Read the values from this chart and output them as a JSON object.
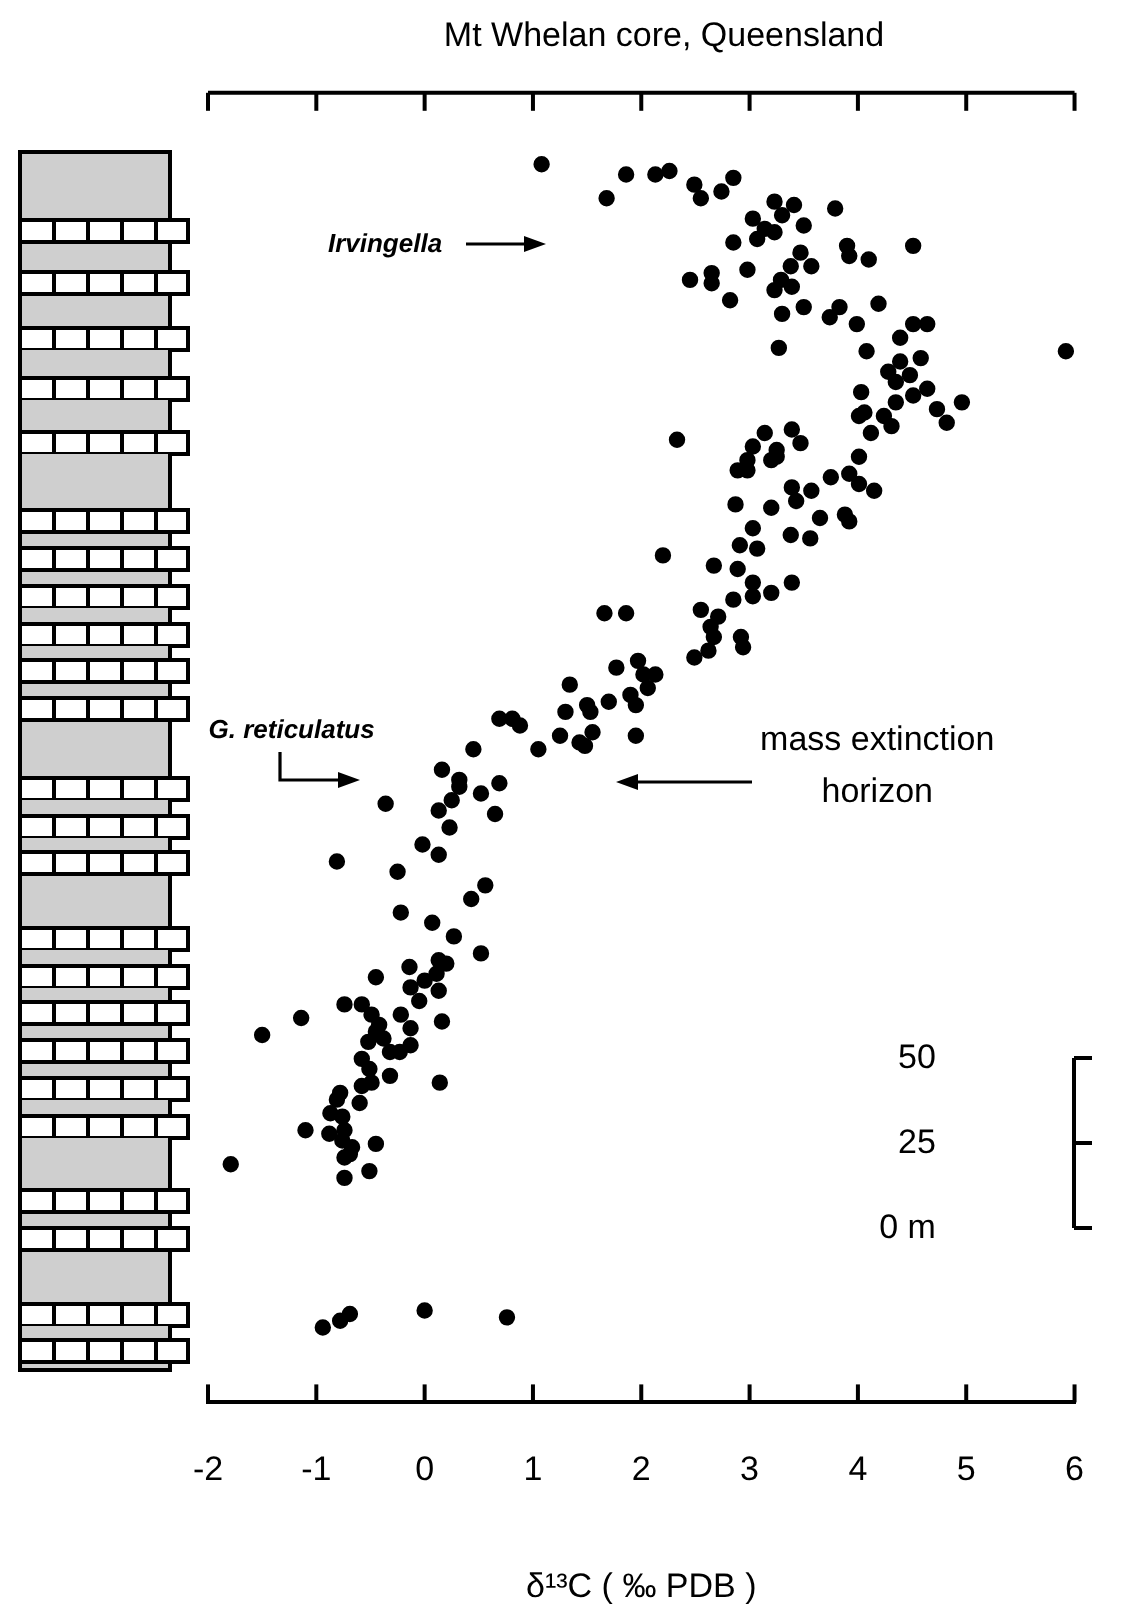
{
  "chart_data": {
    "type": "scatter",
    "title": "Mt Whelan core, Queensland",
    "xlabel": "δ¹³C ( ‰ PDB )",
    "x": [
      1.08,
      1.68,
      1.86,
      2.13,
      2.26,
      2.49,
      2.55,
      2.74,
      2.85,
      3.03,
      3.07,
      3.14,
      3.23,
      3.23,
      3.3,
      3.41,
      3.5,
      3.79,
      2.85,
      3.47,
      3.38,
      3.57,
      3.9,
      3.92,
      4.1,
      4.51,
      2.45,
      2.65,
      2.65,
      2.98,
      3.29,
      3.23,
      3.39,
      2.82,
      3.3,
      3.5,
      3.74,
      3.83,
      3.99,
      4.19,
      4.51,
      4.64,
      4.39,
      3.27,
      4.08,
      5.92,
      4.39,
      4.28,
      4.58,
      4.48,
      4.35,
      4.03,
      4.51,
      4.64,
      4.35,
      4.96,
      4.73,
      4.82,
      4.01,
      4.06,
      4.24,
      4.31,
      4.12,
      2.33,
      3.14,
      3.39,
      3.47,
      3.03,
      3.25,
      2.98,
      3.2,
      4.01,
      3.25,
      2.89,
      2.98,
      3.75,
      3.92,
      4.01,
      4.15,
      3.39,
      3.57,
      3.43,
      2.87,
      3.2,
      3.65,
      3.88,
      3.92,
      3.38,
      3.56,
      3.03,
      2.91,
      3.07,
      2.2,
      2.67,
      2.89,
      3.03,
      3.03,
      3.2,
      3.39,
      2.85,
      2.55,
      2.71,
      2.64,
      2.67,
      2.92,
      2.94,
      2.62,
      2.49,
      1.66,
      1.86,
      1.77,
      1.97,
      2.02,
      2.13,
      2.06,
      1.9,
      1.95,
      1.34,
      1.7,
      1.5,
      1.53,
      1.3,
      1.55,
      1.25,
      1.43,
      1.48,
      1.95,
      1.05,
      0.69,
      0.81,
      0.88,
      0.45,
      0.16,
      0.32,
      0.32,
      0.52,
      0.69,
      0.25,
      0.13,
      -0.36,
      0.65,
      0.23,
      -0.02,
      0.13,
      -0.81,
      -0.25,
      0.56,
      0.43,
      -0.22,
      0.07,
      0.27,
      0.52,
      -0.45,
      -0.14,
      0.13,
      0.2,
      -0.13,
      0,
      0.11,
      0.13,
      -0.05,
      -0.74,
      -0.58,
      -1.14,
      -1.5,
      -0.22,
      -0.13,
      0.16,
      -0.49,
      -0.42,
      -0.45,
      -0.38,
      -0.52,
      -0.32,
      -0.23,
      -0.13,
      -0.58,
      -0.51,
      -0.32,
      -0.58,
      -0.49,
      0.14,
      -0.78,
      -0.6,
      -0.81,
      -0.87,
      -0.76,
      -1.1,
      -0.88,
      -0.74,
      -0.76,
      -0.67,
      -0.45,
      -0.69,
      -0.74,
      -1.79,
      -0.51,
      -0.74,
      -0.94,
      -0.78,
      -0.69,
      0,
      0.76
    ],
    "values": [
      313,
      303,
      310,
      310,
      311,
      307,
      303,
      305,
      309,
      297,
      291,
      294,
      302,
      293,
      298,
      301,
      295,
      300,
      290,
      287,
      283,
      283,
      289,
      286,
      285,
      289,
      279,
      281,
      278,
      282,
      279,
      276,
      277,
      273,
      269,
      271,
      268,
      271,
      266,
      272,
      266,
      266,
      262,
      259,
      258,
      258,
      255,
      252,
      256,
      251,
      249,
      246,
      245,
      247,
      243,
      243,
      241,
      237,
      239,
      240,
      239,
      236,
      234,
      232,
      234,
      235,
      231,
      230,
      229,
      226,
      226,
      227,
      227,
      223,
      223,
      221,
      222,
      219,
      217,
      218,
      217,
      214,
      213,
      212,
      209,
      210,
      208,
      204,
      203,
      206,
      201,
      200,
      198,
      195,
      194,
      190,
      186,
      187,
      190,
      185,
      182,
      180,
      177,
      174,
      174,
      171,
      170,
      168,
      181,
      181,
      165,
      167,
      163,
      163,
      159,
      157,
      154,
      160,
      155,
      154,
      152,
      152,
      146,
      145,
      143,
      142,
      145,
      141,
      150,
      150,
      148,
      141,
      135,
      132,
      130,
      128,
      131,
      126,
      123,
      125,
      122,
      118,
      113,
      110,
      108,
      105,
      101,
      97,
      93,
      90,
      86,
      81,
      74,
      77,
      79,
      78,
      71,
      73,
      75,
      70,
      67,
      66,
      66,
      62,
      57,
      63,
      59,
      61,
      63,
      60,
      58,
      56,
      55,
      52,
      52,
      54,
      50,
      47,
      45,
      42,
      43,
      43,
      40,
      37,
      38,
      34,
      33,
      29,
      28,
      29,
      26,
      24,
      25,
      22,
      21,
      19,
      17,
      15,
      -29,
      -27,
      -25,
      -24,
      -26
    ],
    "color": "#000000",
    "marker": "circle",
    "grid": false,
    "legend": false,
    "xlim": [
      -2,
      6
    ],
    "xticks": [
      -2,
      -1,
      0,
      1,
      2,
      3,
      4,
      5,
      6
    ],
    "ylim": [
      -51,
      334
    ],
    "yticks": [
      {
        "value": 0,
        "label": "0 m"
      },
      25,
      50
    ],
    "annotations": [
      "Irvingella",
      "G. reticulatus",
      "mass extinction horizon"
    ]
  }
}
